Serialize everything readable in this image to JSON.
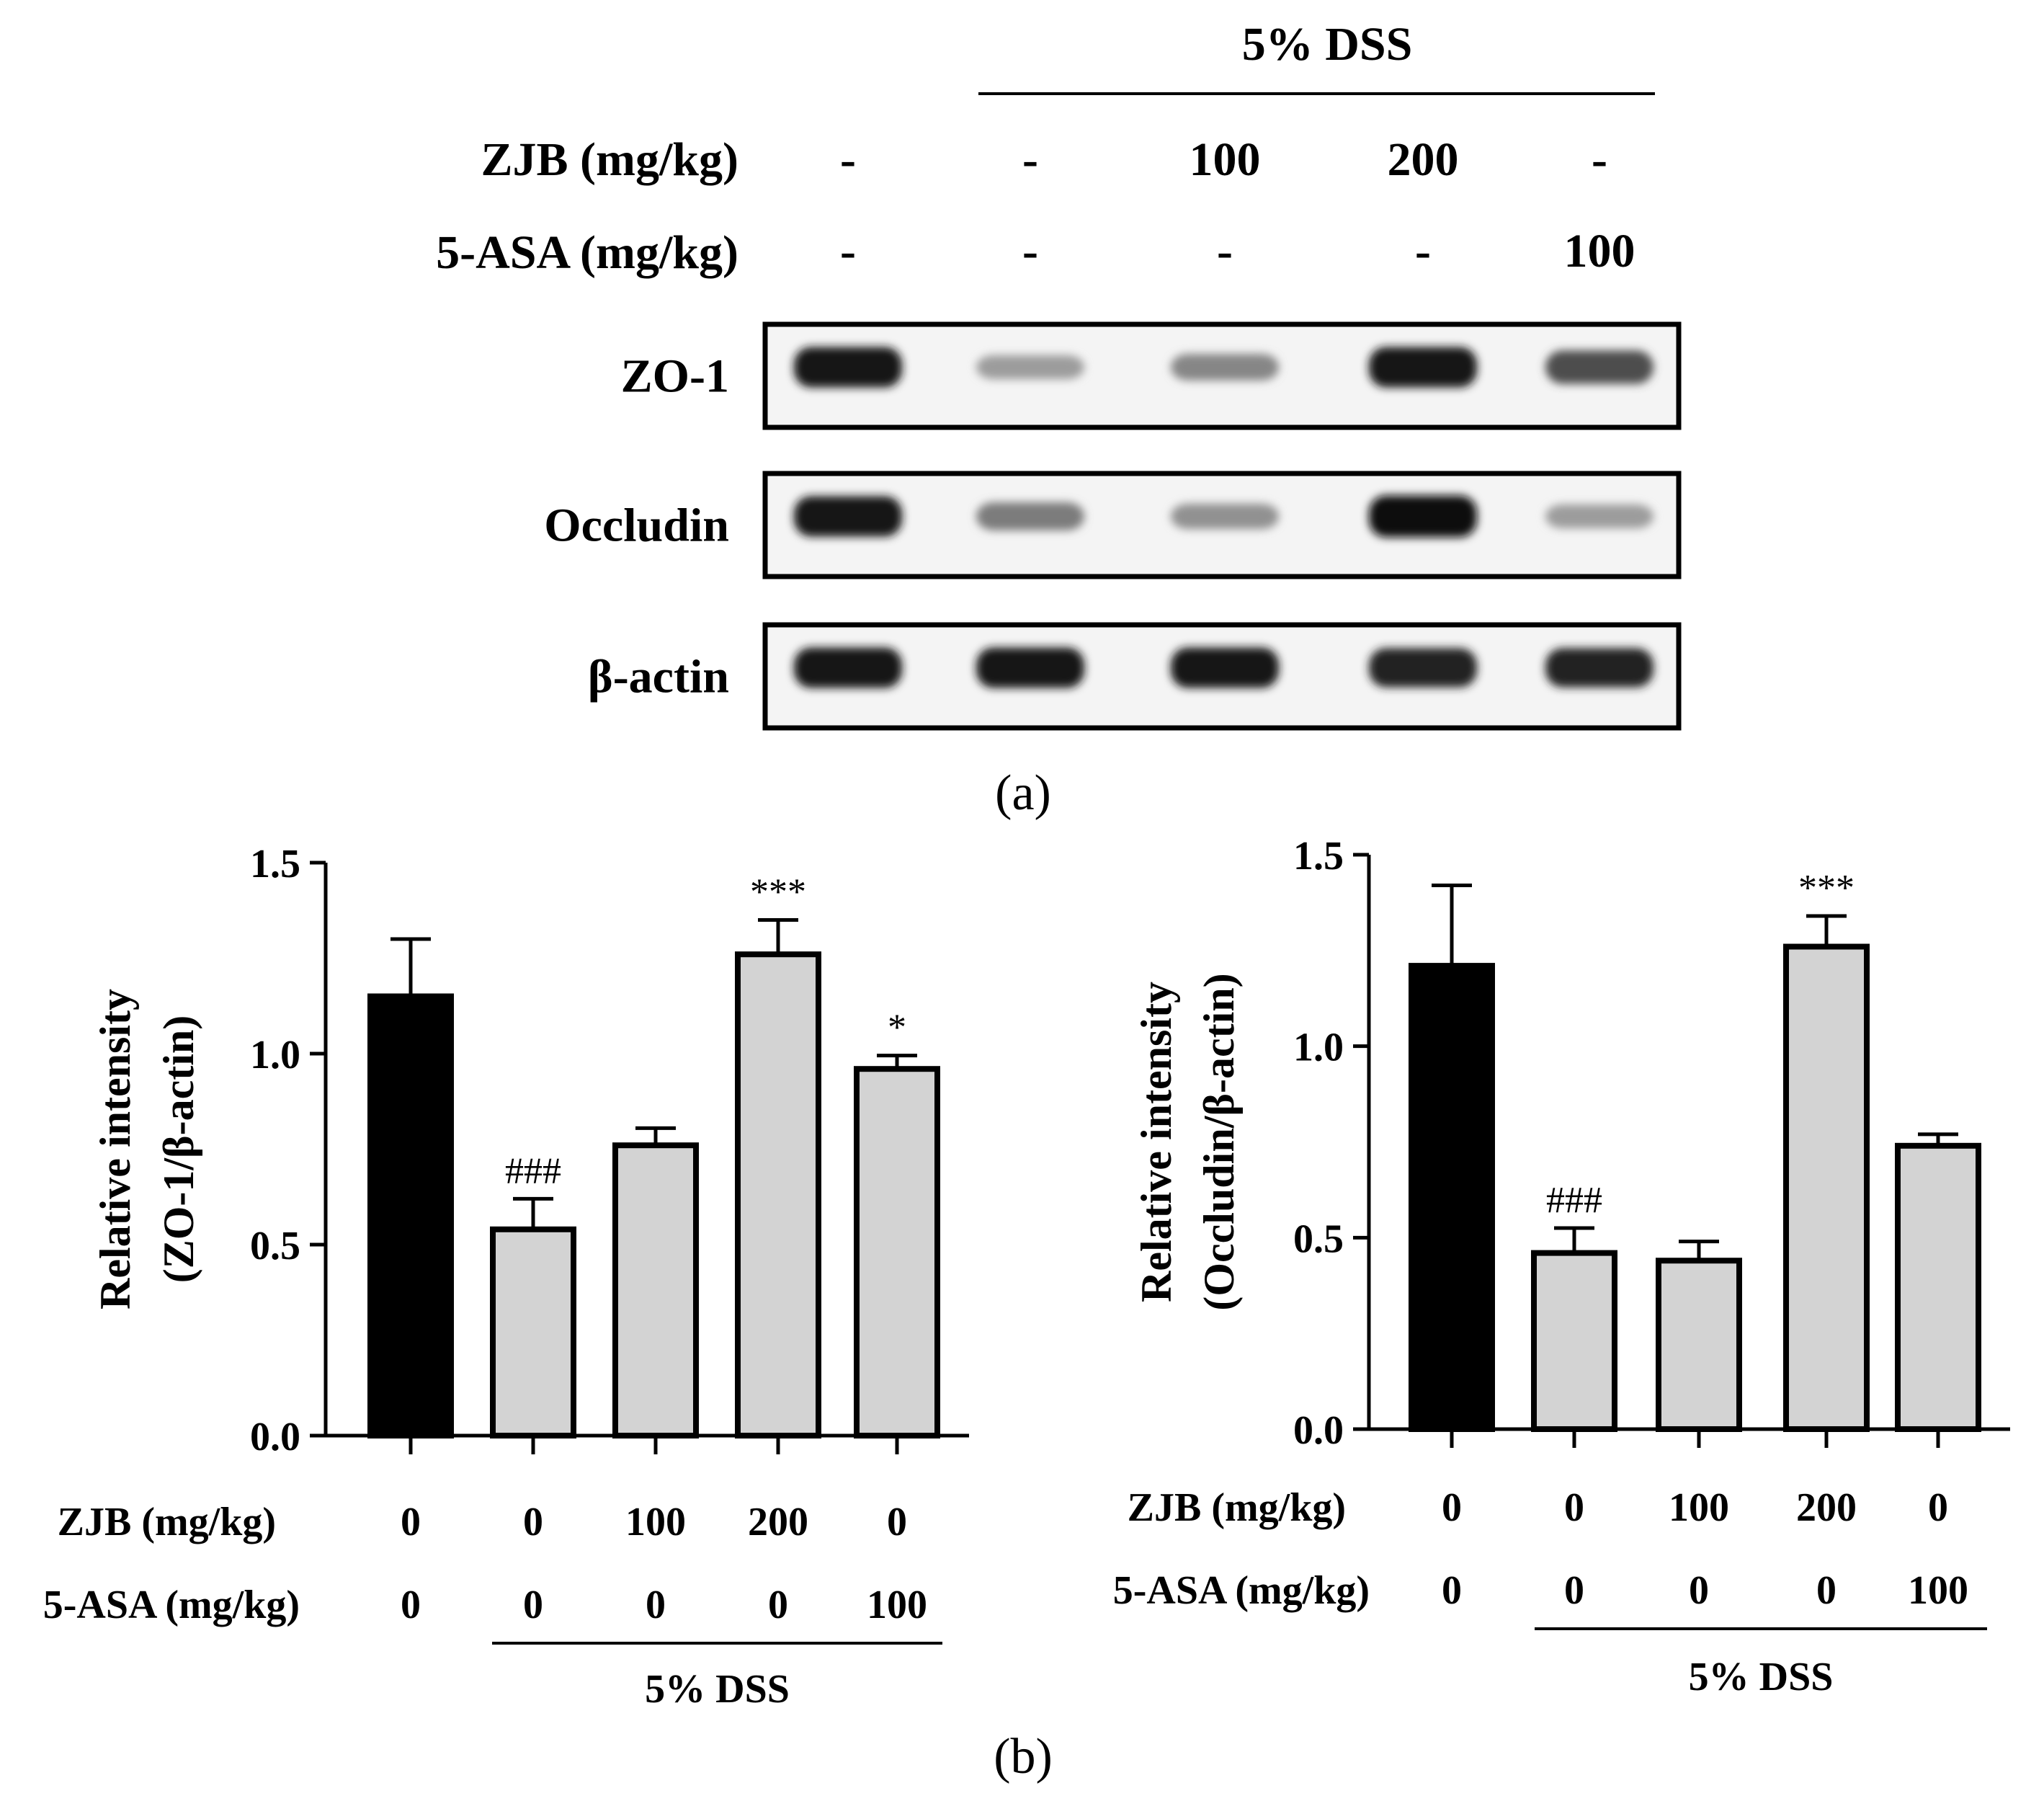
{
  "panel_a": {
    "label": "(a)",
    "dss_label": "5% DSS",
    "row_labels": {
      "zjb": "ZJB (mg/kg)",
      "asa": "5-ASA (mg/kg)"
    },
    "zjb_values": [
      "-",
      "-",
      "100",
      "200",
      "-"
    ],
    "asa_values": [
      "-",
      "-",
      "-",
      "-",
      "100"
    ],
    "blots": [
      {
        "name": "ZO-1",
        "intensity": [
          0.95,
          0.35,
          0.45,
          0.95,
          0.7
        ]
      },
      {
        "name": "Occludin",
        "intensity": [
          0.95,
          0.5,
          0.4,
          1.0,
          0.35
        ]
      },
      {
        "name": "β-actin",
        "intensity": [
          0.95,
          0.95,
          0.95,
          0.9,
          0.9
        ]
      }
    ]
  },
  "panel_b": {
    "label": "(b)",
    "colors": {
      "control": "#000000",
      "treated": "#d3d3d3"
    }
  },
  "chart_data": [
    {
      "type": "bar",
      "ylabel_line1": "Relative intensity",
      "ylabel_line2": "(ZO-1/β-actin)",
      "ylim": [
        0,
        1.5
      ],
      "yticks": [
        "0.0",
        "0.5",
        "1.0",
        "1.5"
      ],
      "row_labels": {
        "zjb": "ZJB (mg/kg)",
        "asa": "5-ASA (mg/kg)"
      },
      "zjb": [
        "0",
        "0",
        "100",
        "200",
        "0"
      ],
      "asa": [
        "0",
        "0",
        "0",
        "0",
        "100"
      ],
      "values": [
        1.15,
        0.54,
        0.76,
        1.26,
        0.96
      ],
      "errors": [
        0.15,
        0.08,
        0.045,
        0.09,
        0.035
      ],
      "annotations": [
        "",
        "###",
        "",
        "***",
        "*"
      ],
      "dss_label": "5% DSS"
    },
    {
      "type": "bar",
      "ylabel_line1": "Relative intensity",
      "ylabel_line2": "(Occludin/β-actin)",
      "ylim": [
        0,
        1.5
      ],
      "yticks": [
        "0.0",
        "0.5",
        "1.0",
        "1.5"
      ],
      "row_labels": {
        "zjb": "ZJB (mg/kg)",
        "asa": "5-ASA (mg/kg)"
      },
      "zjb": [
        "0",
        "0",
        "100",
        "200",
        "0"
      ],
      "asa": [
        "0",
        "0",
        "0",
        "0",
        "100"
      ],
      "values": [
        1.21,
        0.46,
        0.44,
        1.26,
        0.74
      ],
      "errors": [
        0.21,
        0.065,
        0.05,
        0.08,
        0.03
      ],
      "annotations": [
        "",
        "###",
        "",
        "***",
        ""
      ],
      "dss_label": "5% DSS"
    }
  ]
}
